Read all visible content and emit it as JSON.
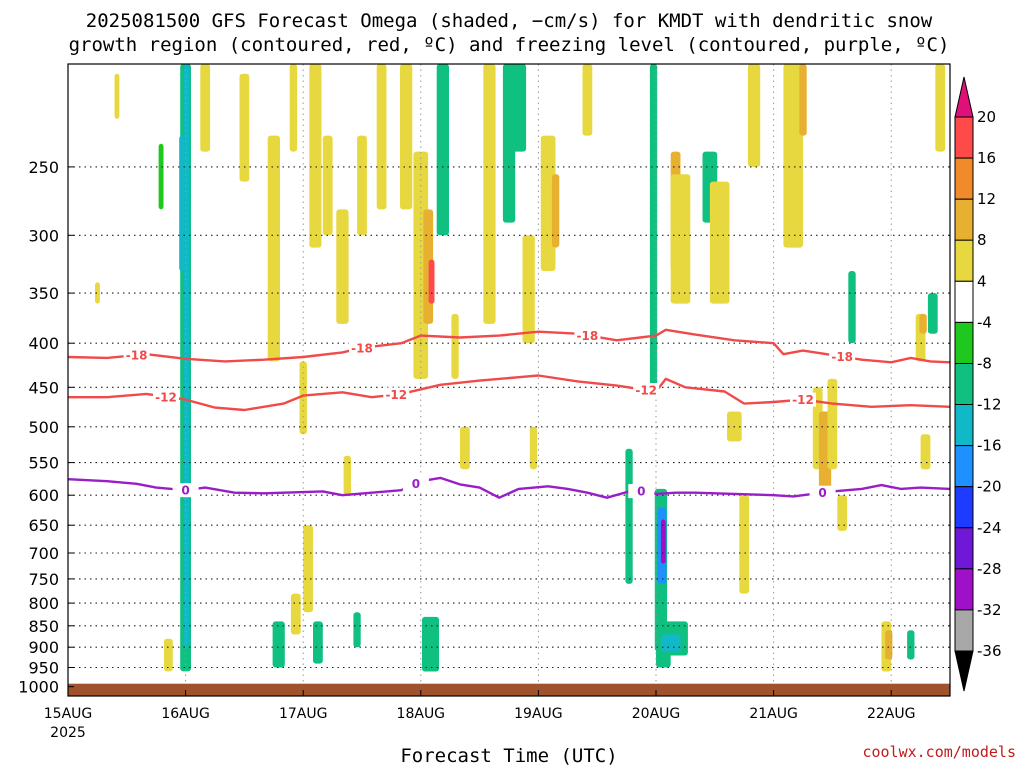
{
  "title": {
    "line1": "2025081500 GFS Forecast Omega (shaded, −cm/s) for KMDT with dendritic snow",
    "line2": "growth region (contoured, red, ºC) and freezing level (contoured, purple, ºC)"
  },
  "credit": "coolwx.com/models",
  "colors": {
    "dgz_line": "#f04a4a",
    "freezing_line": "#9a1ec8",
    "ground": "#a0522d"
  },
  "chart_data": {
    "type": "heatmap",
    "title": "2025081500 GFS Forecast Omega (shaded, −cm/s) for KMDT with dendritic snow growth region (contoured, red, ºC) and freezing level (contoured, purple, ºC)",
    "xlabel": "Forecast Time (UTC)",
    "ylabel": "",
    "x_range_hours": [
      0,
      180
    ],
    "x_ticks": [
      {
        "hour": 0,
        "label": "15AUG",
        "sublabel": "2025"
      },
      {
        "hour": 24,
        "label": "16AUG"
      },
      {
        "hour": 48,
        "label": "17AUG"
      },
      {
        "hour": 72,
        "label": "18AUG"
      },
      {
        "hour": 96,
        "label": "19AUG"
      },
      {
        "hour": 120,
        "label": "20AUG"
      },
      {
        "hour": 144,
        "label": "21AUG"
      },
      {
        "hour": 168,
        "label": "22AUG"
      }
    ],
    "y_scale": "log-pressure",
    "y_range_hpa": [
      1025,
      190
    ],
    "y_ticks": [
      250,
      300,
      350,
      400,
      450,
      500,
      550,
      600,
      650,
      700,
      750,
      800,
      850,
      900,
      950,
      1000
    ],
    "grid": true,
    "colorbar": {
      "labels": [
        "20",
        "16",
        "12",
        "8",
        "4",
        "-4",
        "-8",
        "-12",
        "-16",
        "-20",
        "-24",
        "-28",
        "-32",
        "-36"
      ],
      "colors": [
        "#ff4a4a",
        "#f08a2a",
        "#e8b030",
        "#e8d840",
        "#ffffff",
        "#1ec81e",
        "#10c080",
        "#10b8c8",
        "#1e90ff",
        "#1e3cff",
        "#7018d8",
        "#a010c8",
        "#a8a8a8"
      ],
      "top_arrow_color": "#e0107a",
      "bottom_arrow_color": "#000000"
    },
    "contours": [
      {
        "level": "-18",
        "color": "#f04a4a",
        "label_hours": [
          14,
          60,
          106,
          158
        ],
        "points": [
          [
            0,
            415
          ],
          [
            8,
            416
          ],
          [
            16,
            412
          ],
          [
            24,
            417
          ],
          [
            32,
            420
          ],
          [
            40,
            418
          ],
          [
            48,
            415
          ],
          [
            56,
            410
          ],
          [
            60,
            405
          ],
          [
            68,
            400
          ],
          [
            72,
            392
          ],
          [
            80,
            394
          ],
          [
            88,
            392
          ],
          [
            96,
            388
          ],
          [
            104,
            390
          ],
          [
            112,
            397
          ],
          [
            120,
            392
          ],
          [
            122,
            386
          ],
          [
            128,
            391
          ],
          [
            136,
            397
          ],
          [
            144,
            400
          ],
          [
            146,
            412
          ],
          [
            150,
            408
          ],
          [
            156,
            413
          ],
          [
            162,
            418
          ],
          [
            168,
            421
          ],
          [
            172,
            416
          ],
          [
            176,
            420
          ],
          [
            180,
            421
          ]
        ]
      },
      {
        "level": "-12",
        "color": "#f04a4a",
        "label_hours": [
          20,
          67,
          118,
          150
        ],
        "points": [
          [
            0,
            462
          ],
          [
            8,
            462
          ],
          [
            16,
            458
          ],
          [
            24,
            465
          ],
          [
            30,
            475
          ],
          [
            36,
            478
          ],
          [
            44,
            470
          ],
          [
            48,
            460
          ],
          [
            56,
            456
          ],
          [
            62,
            462
          ],
          [
            68,
            458
          ],
          [
            76,
            447
          ],
          [
            84,
            442
          ],
          [
            92,
            438
          ],
          [
            96,
            436
          ],
          [
            104,
            443
          ],
          [
            112,
            448
          ],
          [
            120,
            455
          ],
          [
            122,
            440
          ],
          [
            126,
            450
          ],
          [
            134,
            455
          ],
          [
            138,
            470
          ],
          [
            144,
            468
          ],
          [
            150,
            465
          ],
          [
            156,
            470
          ],
          [
            164,
            474
          ],
          [
            172,
            472
          ],
          [
            180,
            474
          ]
        ]
      },
      {
        "level": "0",
        "color": "#9a1ec8",
        "label_hours": [
          24,
          71,
          117,
          154
        ],
        "points": [
          [
            0,
            575
          ],
          [
            8,
            578
          ],
          [
            14,
            582
          ],
          [
            18,
            588
          ],
          [
            24,
            592
          ],
          [
            28,
            588
          ],
          [
            34,
            596
          ],
          [
            40,
            597
          ],
          [
            48,
            595
          ],
          [
            52,
            594
          ],
          [
            56,
            600
          ],
          [
            62,
            596
          ],
          [
            68,
            592
          ],
          [
            72,
            578
          ],
          [
            76,
            573
          ],
          [
            80,
            583
          ],
          [
            84,
            588
          ],
          [
            88,
            604
          ],
          [
            92,
            590
          ],
          [
            98,
            586
          ],
          [
            102,
            590
          ],
          [
            106,
            596
          ],
          [
            110,
            604
          ],
          [
            114,
            595
          ],
          [
            118,
            593
          ],
          [
            120,
            598
          ],
          [
            124,
            596
          ],
          [
            128,
            596
          ],
          [
            136,
            598
          ],
          [
            144,
            600
          ],
          [
            148,
            602
          ],
          [
            152,
            598
          ],
          [
            156,
            594
          ],
          [
            162,
            590
          ],
          [
            166,
            584
          ],
          [
            170,
            590
          ],
          [
            174,
            588
          ],
          [
            180,
            590
          ]
        ]
      }
    ],
    "shaded_cells": [
      {
        "h": 24,
        "dh": 2.2,
        "p_top": 190,
        "p_bot": 960,
        "value": -8
      },
      {
        "h": 24.2,
        "dh": 1.0,
        "p_top": 190,
        "p_bot": 900,
        "value": -12
      },
      {
        "h": 23.2,
        "dh": 1.0,
        "p_top": 230,
        "p_bot": 330,
        "value": -12
      },
      {
        "h": 10,
        "dh": 1.0,
        "p_top": 195,
        "p_bot": 220,
        "value": 4
      },
      {
        "h": 19,
        "dh": 1.0,
        "p_top": 235,
        "p_bot": 280,
        "value": -4
      },
      {
        "h": 6,
        "dh": 1.0,
        "p_top": 340,
        "p_bot": 360,
        "value": 4
      },
      {
        "h": 20.5,
        "dh": 1.8,
        "p_top": 880,
        "p_bot": 960,
        "value": 4
      },
      {
        "h": 28,
        "dh": 2.0,
        "p_top": 190,
        "p_bot": 240,
        "value": 4
      },
      {
        "h": 36,
        "dh": 2.0,
        "p_top": 195,
        "p_bot": 260,
        "value": 4
      },
      {
        "h": 42,
        "dh": 2.5,
        "p_top": 230,
        "p_bot": 420,
        "value": 4
      },
      {
        "h": 46,
        "dh": 1.5,
        "p_top": 190,
        "p_bot": 240,
        "value": 4
      },
      {
        "h": 51,
        "dh": 1.5,
        "p_top": 195,
        "p_bot": 250,
        "value": 8
      },
      {
        "h": 50.5,
        "dh": 2.5,
        "p_top": 190,
        "p_bot": 310,
        "value": 4
      },
      {
        "h": 53,
        "dh": 2.0,
        "p_top": 230,
        "p_bot": 300,
        "value": 4
      },
      {
        "h": 56,
        "dh": 2.5,
        "p_top": 280,
        "p_bot": 380,
        "value": 4
      },
      {
        "h": 60,
        "dh": 2.0,
        "p_top": 230,
        "p_bot": 300,
        "value": 4
      },
      {
        "h": 64,
        "dh": 2.0,
        "p_top": 190,
        "p_bot": 280,
        "value": 4
      },
      {
        "h": 48,
        "dh": 1.5,
        "p_top": 420,
        "p_bot": 510,
        "value": 4
      },
      {
        "h": 49,
        "dh": 2.0,
        "p_top": 650,
        "p_bot": 820,
        "value": 4
      },
      {
        "h": 43,
        "dh": 2.5,
        "p_top": 840,
        "p_bot": 950,
        "value": -8
      },
      {
        "h": 46.5,
        "dh": 2.0,
        "p_top": 780,
        "p_bot": 870,
        "value": 4
      },
      {
        "h": 51,
        "dh": 2.0,
        "p_top": 840,
        "p_bot": 940,
        "value": -8
      },
      {
        "h": 59,
        "dh": 1.5,
        "p_top": 820,
        "p_bot": 900,
        "value": -8
      },
      {
        "h": 57,
        "dh": 1.5,
        "p_top": 540,
        "p_bot": 600,
        "value": 4
      },
      {
        "h": 69,
        "dh": 2.5,
        "p_top": 190,
        "p_bot": 280,
        "value": 4
      },
      {
        "h": 72,
        "dh": 3.0,
        "p_top": 240,
        "p_bot": 440,
        "value": 4
      },
      {
        "h": 73.5,
        "dh": 2.0,
        "p_top": 280,
        "p_bot": 380,
        "value": 8
      },
      {
        "h": 74.2,
        "dh": 1.2,
        "p_top": 320,
        "p_bot": 360,
        "value": 16
      },
      {
        "h": 76.5,
        "dh": 2.5,
        "p_top": 190,
        "p_bot": 300,
        "value": -8
      },
      {
        "h": 79,
        "dh": 1.5,
        "p_top": 370,
        "p_bot": 440,
        "value": 4
      },
      {
        "h": 74,
        "dh": 3.5,
        "p_top": 830,
        "p_bot": 960,
        "value": -8
      },
      {
        "h": 81,
        "dh": 2.0,
        "p_top": 500,
        "p_bot": 560,
        "value": 4
      },
      {
        "h": 86,
        "dh": 2.5,
        "p_top": 190,
        "p_bot": 380,
        "value": 4
      },
      {
        "h": 90,
        "dh": 2.5,
        "p_top": 190,
        "p_bot": 290,
        "value": -8
      },
      {
        "h": 92,
        "dh": 3.0,
        "p_top": 190,
        "p_bot": 240,
        "value": -8
      },
      {
        "h": 94,
        "dh": 2.5,
        "p_top": 300,
        "p_bot": 400,
        "value": 4
      },
      {
        "h": 95,
        "dh": 1.5,
        "p_top": 500,
        "p_bot": 560,
        "value": 4
      },
      {
        "h": 98,
        "dh": 3.0,
        "p_top": 230,
        "p_bot": 330,
        "value": 4
      },
      {
        "h": 99.5,
        "dh": 1.5,
        "p_top": 255,
        "p_bot": 310,
        "value": 8
      },
      {
        "h": 106,
        "dh": 2.0,
        "p_top": 190,
        "p_bot": 230,
        "value": 4
      },
      {
        "h": 114.5,
        "dh": 1.5,
        "p_top": 530,
        "p_bot": 760,
        "value": -8
      },
      {
        "h": 119.5,
        "dh": 1.5,
        "p_top": 190,
        "p_bot": 450,
        "value": -8
      },
      {
        "h": 121,
        "dh": 2.5,
        "p_top": 590,
        "p_bot": 910,
        "value": -8
      },
      {
        "h": 121.5,
        "dh": 3.0,
        "p_top": 860,
        "p_bot": 950,
        "value": -8
      },
      {
        "h": 124,
        "dh": 5.0,
        "p_top": 840,
        "p_bot": 920,
        "value": -8
      },
      {
        "h": 123,
        "dh": 4.0,
        "p_top": 870,
        "p_bot": 910,
        "value": -12
      },
      {
        "h": 121.2,
        "dh": 1.8,
        "p_top": 620,
        "p_bot": 760,
        "value": -16
      },
      {
        "h": 121.5,
        "dh": 1.0,
        "p_top": 640,
        "p_bot": 720,
        "value": -28
      },
      {
        "h": 124,
        "dh": 2.0,
        "p_top": 240,
        "p_bot": 330,
        "value": 8
      },
      {
        "h": 125,
        "dh": 4.0,
        "p_top": 255,
        "p_bot": 360,
        "value": 4
      },
      {
        "h": 131,
        "dh": 3.0,
        "p_top": 240,
        "p_bot": 290,
        "value": -8
      },
      {
        "h": 133,
        "dh": 4.0,
        "p_top": 260,
        "p_bot": 360,
        "value": 4
      },
      {
        "h": 136,
        "dh": 3.0,
        "p_top": 480,
        "p_bot": 520,
        "value": 4
      },
      {
        "h": 140,
        "dh": 2.5,
        "p_top": 190,
        "p_bot": 250,
        "value": 4
      },
      {
        "h": 138,
        "dh": 2.0,
        "p_top": 600,
        "p_bot": 780,
        "value": 4
      },
      {
        "h": 148,
        "dh": 4.0,
        "p_top": 190,
        "p_bot": 310,
        "value": 4
      },
      {
        "h": 150,
        "dh": 1.5,
        "p_top": 190,
        "p_bot": 230,
        "value": 8
      },
      {
        "h": 153,
        "dh": 2.0,
        "p_top": 450,
        "p_bot": 560,
        "value": 4
      },
      {
        "h": 154.5,
        "dh": 2.5,
        "p_top": 480,
        "p_bot": 600,
        "value": 8
      },
      {
        "h": 156,
        "dh": 2.0,
        "p_top": 440,
        "p_bot": 560,
        "value": 4
      },
      {
        "h": 158,
        "dh": 2.0,
        "p_top": 600,
        "p_bot": 660,
        "value": 4
      },
      {
        "h": 160,
        "dh": 1.5,
        "p_top": 330,
        "p_bot": 400,
        "value": -8
      },
      {
        "h": 174,
        "dh": 2.0,
        "p_top": 370,
        "p_bot": 420,
        "value": 4
      },
      {
        "h": 174.5,
        "dh": 1.5,
        "p_top": 370,
        "p_bot": 390,
        "value": 8
      },
      {
        "h": 176.5,
        "dh": 2.0,
        "p_top": 350,
        "p_bot": 390,
        "value": -8
      },
      {
        "h": 175,
        "dh": 2.0,
        "p_top": 510,
        "p_bot": 560,
        "value": 4
      },
      {
        "h": 167,
        "dh": 2.0,
        "p_top": 840,
        "p_bot": 960,
        "value": 4
      },
      {
        "h": 167.5,
        "dh": 1.5,
        "p_top": 860,
        "p_bot": 930,
        "value": 8
      },
      {
        "h": 172,
        "dh": 1.5,
        "p_top": 860,
        "p_bot": 930,
        "value": -8
      },
      {
        "h": 178,
        "dh": 2.0,
        "p_top": 190,
        "p_bot": 240,
        "value": 4
      }
    ]
  }
}
